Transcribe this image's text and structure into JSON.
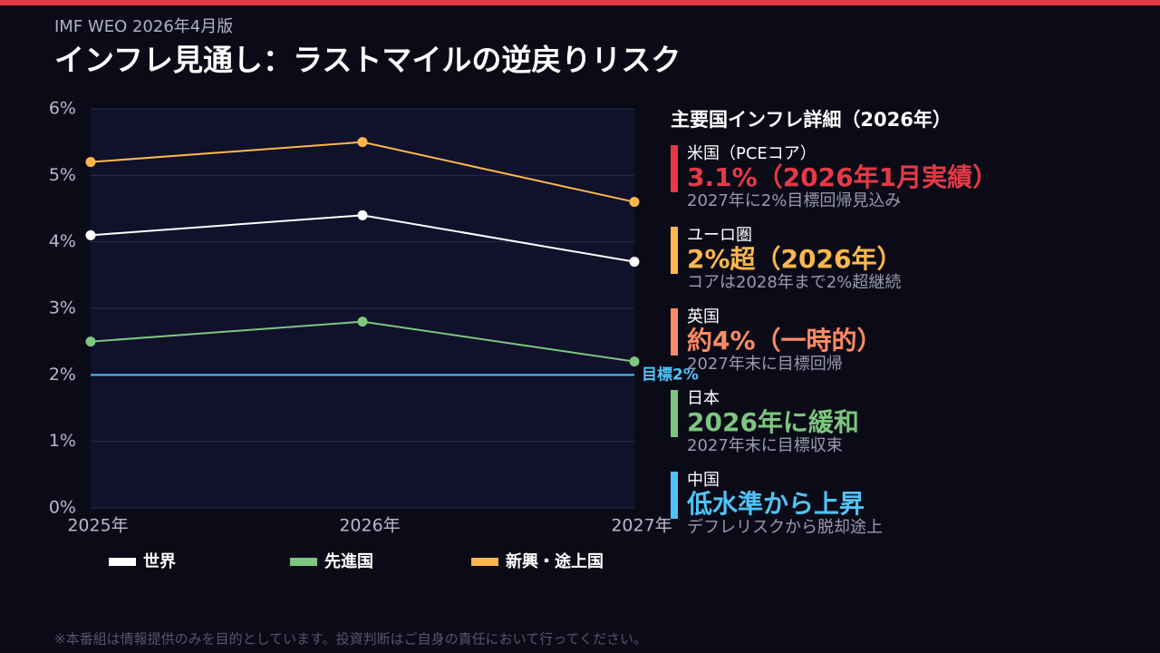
{
  "header": {
    "subtitle": "IMF WEO 2026年4月版",
    "title": "インフレ見通し：ラストマイルの逆戻りリスク"
  },
  "chart_data": {
    "type": "line",
    "categories": [
      "2025年",
      "2026年",
      "2027年"
    ],
    "series": [
      {
        "name": "世界",
        "color": "#ffffff",
        "values": [
          4.1,
          4.4,
          3.7
        ]
      },
      {
        "name": "先進国",
        "color": "#7dc67e",
        "values": [
          2.5,
          2.8,
          2.2
        ]
      },
      {
        "name": "新興・途上国",
        "color": "#ffb74d",
        "values": [
          5.2,
          5.5,
          4.6
        ]
      }
    ],
    "ylim": [
      0,
      6
    ],
    "yticks": [
      {
        "value": 0,
        "label": "0%"
      },
      {
        "value": 1,
        "label": "1%"
      },
      {
        "value": 2,
        "label": "2%"
      },
      {
        "value": 3,
        "label": "3%"
      },
      {
        "value": 4,
        "label": "4%"
      },
      {
        "value": 5,
        "label": "5%"
      },
      {
        "value": 6,
        "label": "6%"
      }
    ],
    "grid": true,
    "reference_line": {
      "value": 2,
      "label": "目標2%",
      "color": "#4fc3f7"
    }
  },
  "panel": {
    "title": "主要国インフレ詳細（2026年）",
    "items": [
      {
        "label": "米国（PCEコア）",
        "value": "3.1%（2026年1月実績）",
        "note": "2027年に2%目標回帰見込み",
        "color": "#e63946"
      },
      {
        "label": "ユーロ圏",
        "value": "2%超（2026年）",
        "note": "コアは2028年まで2%超継続",
        "color": "#ffb74d"
      },
      {
        "label": "英国",
        "value": "約4%（一時的）",
        "note": "2027年末に目標回帰",
        "color": "#ff8a65"
      },
      {
        "label": "日本",
        "value": "2026年に緩和",
        "note": "2027年末に目標収束",
        "color": "#7dc67e"
      },
      {
        "label": "中国",
        "value": "低水準から上昇",
        "note": "デフレリスクから脱却途上",
        "color": "#4fc3f7"
      }
    ]
  },
  "footer": "※本番組は情報提供のみを目的としています。投資判断はご自身の責任において行ってください。"
}
